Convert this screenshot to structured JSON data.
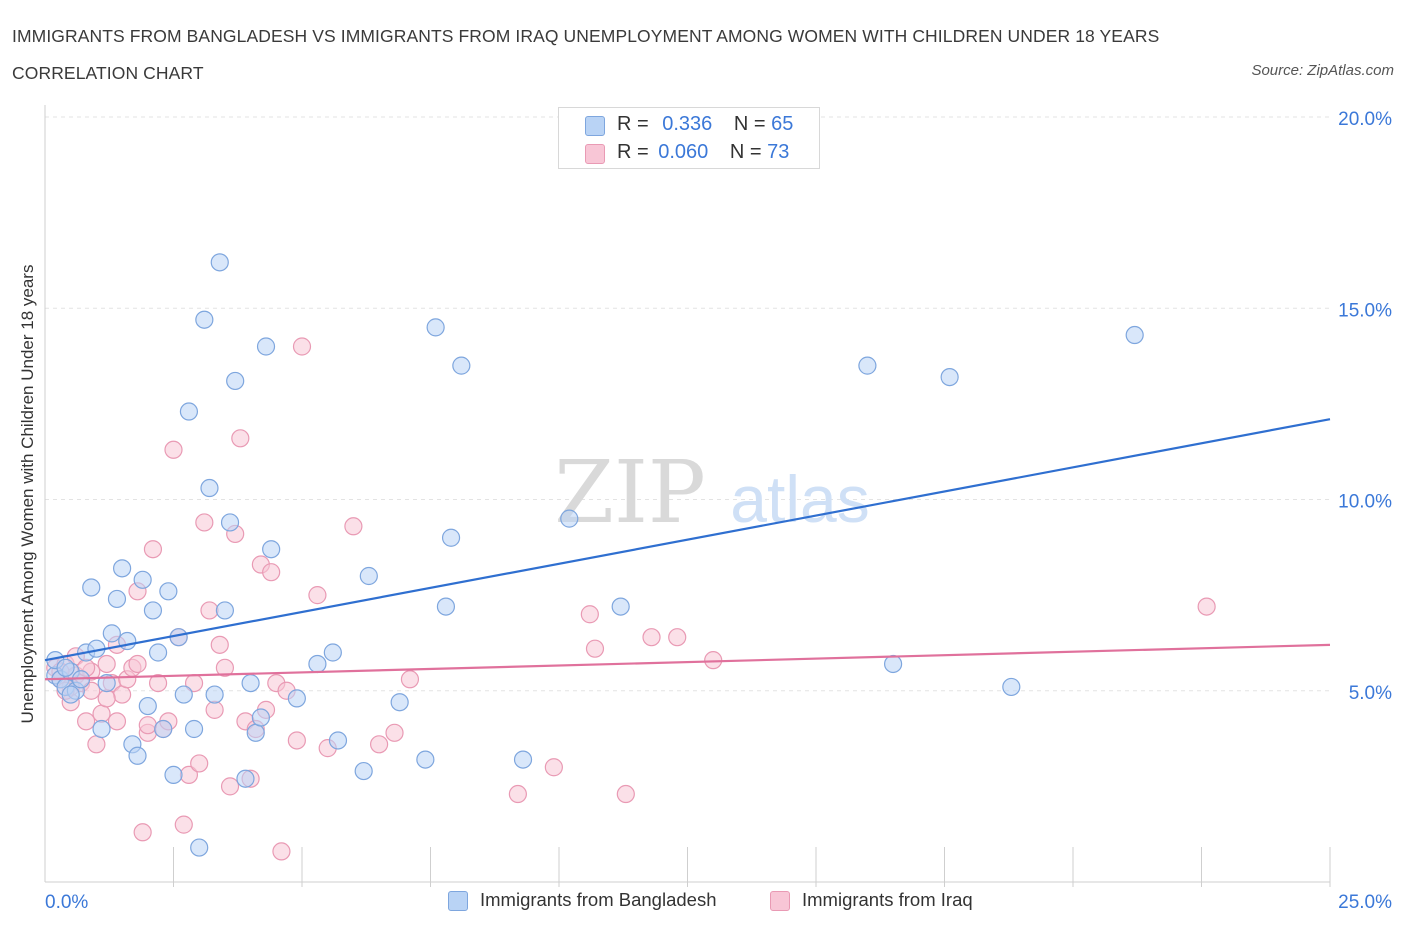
{
  "title": "IMMIGRANTS FROM BANGLADESH VS IMMIGRANTS FROM IRAQ UNEMPLOYMENT AMONG WOMEN WITH CHILDREN UNDER 18 YEARS CORRELATION CHART",
  "source": "Source: ZipAtlas.com",
  "watermark": {
    "zip": "ZIP",
    "atlas": "atlas"
  },
  "legend_top": {
    "r_label": "R =",
    "n_label": "N =",
    "rows": [
      {
        "r": "0.336",
        "n": "65"
      },
      {
        "r": "0.060",
        "n": "73"
      }
    ]
  },
  "colors": {
    "bangladesh_fill": "#b9d3f5",
    "bangladesh_stroke": "#7ea6de",
    "bangladesh_line": "#2f6fd0",
    "iraq_fill": "#f8c6d6",
    "iraq_stroke": "#e99ab4",
    "iraq_line": "#e0719c",
    "tick_label": "#3b78d8"
  },
  "chart_data": {
    "type": "scatter",
    "xlabel": "",
    "ylabel": "Unemployment Among Women with Children Under 18 years",
    "xlim": [
      0,
      25
    ],
    "ylim": [
      0,
      20
    ],
    "x_tick_labels": [
      {
        "value": 0,
        "label": "0.0%"
      },
      {
        "value": 25,
        "label": "25.0%"
      }
    ],
    "y_tick_labels": [
      {
        "value": 5,
        "label": "5.0%"
      },
      {
        "value": 10,
        "label": "10.0%"
      },
      {
        "value": 15,
        "label": "15.0%"
      },
      {
        "value": 20,
        "label": "20.0%"
      }
    ],
    "grid": "horizontal dashed",
    "legend_position": "bottom-center",
    "series": [
      {
        "name": "Immigrants from Bangladesh",
        "trend": {
          "x": [
            0,
            25
          ],
          "y": [
            5.8,
            12.1
          ]
        },
        "points": [
          [
            0.2,
            5.4
          ],
          [
            0.3,
            5.3
          ],
          [
            0.4,
            5.1
          ],
          [
            0.5,
            5.5
          ],
          [
            0.6,
            5.0
          ],
          [
            0.2,
            5.8
          ],
          [
            0.5,
            4.9
          ],
          [
            0.8,
            6.0
          ],
          [
            0.9,
            7.7
          ],
          [
            1.1,
            4.0
          ],
          [
            1.2,
            5.2
          ],
          [
            1.3,
            6.5
          ],
          [
            1.4,
            7.4
          ],
          [
            1.5,
            8.2
          ],
          [
            1.6,
            6.3
          ],
          [
            1.7,
            3.6
          ],
          [
            1.8,
            3.3
          ],
          [
            1.9,
            7.9
          ],
          [
            2.0,
            4.6
          ],
          [
            2.1,
            7.1
          ],
          [
            2.2,
            6.0
          ],
          [
            2.3,
            4.0
          ],
          [
            2.4,
            7.6
          ],
          [
            2.5,
            2.8
          ],
          [
            2.6,
            6.4
          ],
          [
            2.7,
            4.9
          ],
          [
            2.8,
            12.3
          ],
          [
            2.9,
            4.0
          ],
          [
            3.0,
            0.9
          ],
          [
            3.1,
            14.7
          ],
          [
            3.2,
            10.3
          ],
          [
            3.3,
            4.9
          ],
          [
            3.4,
            16.2
          ],
          [
            3.5,
            7.1
          ],
          [
            3.6,
            9.4
          ],
          [
            3.7,
            13.1
          ],
          [
            3.9,
            2.7
          ],
          [
            4.0,
            5.2
          ],
          [
            4.1,
            3.9
          ],
          [
            4.2,
            4.3
          ],
          [
            4.3,
            14.0
          ],
          [
            4.4,
            8.7
          ],
          [
            4.9,
            4.8
          ],
          [
            5.3,
            5.7
          ],
          [
            5.6,
            6.0
          ],
          [
            5.7,
            3.7
          ],
          [
            6.2,
            2.9
          ],
          [
            6.3,
            8.0
          ],
          [
            6.9,
            4.7
          ],
          [
            7.4,
            3.2
          ],
          [
            7.6,
            14.5
          ],
          [
            7.8,
            7.2
          ],
          [
            7.9,
            9.0
          ],
          [
            8.1,
            13.5
          ],
          [
            9.3,
            3.2
          ],
          [
            10.2,
            9.5
          ],
          [
            11.2,
            7.2
          ],
          [
            16.0,
            13.5
          ],
          [
            16.5,
            5.7
          ],
          [
            17.6,
            13.2
          ],
          [
            18.8,
            5.1
          ],
          [
            21.2,
            14.3
          ],
          [
            0.4,
            5.6
          ],
          [
            1.0,
            6.1
          ],
          [
            0.7,
            5.3
          ]
        ]
      },
      {
        "name": "Immigrants from Iraq",
        "trend": {
          "x": [
            0,
            25
          ],
          "y": [
            5.3,
            6.2
          ]
        },
        "points": [
          [
            0.2,
            5.6
          ],
          [
            0.3,
            5.3
          ],
          [
            0.4,
            5.7
          ],
          [
            0.5,
            4.7
          ],
          [
            0.6,
            5.4
          ],
          [
            0.7,
            5.2
          ],
          [
            0.8,
            4.2
          ],
          [
            0.9,
            5.5
          ],
          [
            1.0,
            3.6
          ],
          [
            1.1,
            4.4
          ],
          [
            1.2,
            5.7
          ],
          [
            1.3,
            5.2
          ],
          [
            1.4,
            6.2
          ],
          [
            1.5,
            4.9
          ],
          [
            1.6,
            5.3
          ],
          [
            1.7,
            5.6
          ],
          [
            1.8,
            7.6
          ],
          [
            1.9,
            1.3
          ],
          [
            2.0,
            3.9
          ],
          [
            2.1,
            8.7
          ],
          [
            2.2,
            5.2
          ],
          [
            2.3,
            4.0
          ],
          [
            2.4,
            4.2
          ],
          [
            2.5,
            11.3
          ],
          [
            2.6,
            6.4
          ],
          [
            2.7,
            1.5
          ],
          [
            2.8,
            2.8
          ],
          [
            2.9,
            5.2
          ],
          [
            3.0,
            3.1
          ],
          [
            3.1,
            9.4
          ],
          [
            3.2,
            7.1
          ],
          [
            3.3,
            4.5
          ],
          [
            3.4,
            6.2
          ],
          [
            3.5,
            5.6
          ],
          [
            3.6,
            2.5
          ],
          [
            3.7,
            9.1
          ],
          [
            3.8,
            11.6
          ],
          [
            3.9,
            4.2
          ],
          [
            4.0,
            2.7
          ],
          [
            4.1,
            4.0
          ],
          [
            4.2,
            8.3
          ],
          [
            4.3,
            4.5
          ],
          [
            4.4,
            8.1
          ],
          [
            4.5,
            5.2
          ],
          [
            4.6,
            0.8
          ],
          [
            4.7,
            5.0
          ],
          [
            4.9,
            3.7
          ],
          [
            5.0,
            14.0
          ],
          [
            5.3,
            7.5
          ],
          [
            5.5,
            3.5
          ],
          [
            6.0,
            9.3
          ],
          [
            6.5,
            3.6
          ],
          [
            6.8,
            3.9
          ],
          [
            7.1,
            5.3
          ],
          [
            9.2,
            2.3
          ],
          [
            9.9,
            3.0
          ],
          [
            10.6,
            7.0
          ],
          [
            10.7,
            6.1
          ],
          [
            11.3,
            2.3
          ],
          [
            11.8,
            6.4
          ],
          [
            12.3,
            6.4
          ],
          [
            13.0,
            5.8
          ],
          [
            22.6,
            7.2
          ],
          [
            0.3,
            5.5
          ],
          [
            0.5,
            5.1
          ],
          [
            0.6,
            5.9
          ],
          [
            1.4,
            4.2
          ],
          [
            2.0,
            4.1
          ],
          [
            0.4,
            5.0
          ],
          [
            1.8,
            5.7
          ],
          [
            0.8,
            5.6
          ],
          [
            1.2,
            4.8
          ],
          [
            0.9,
            5.0
          ]
        ]
      }
    ]
  }
}
